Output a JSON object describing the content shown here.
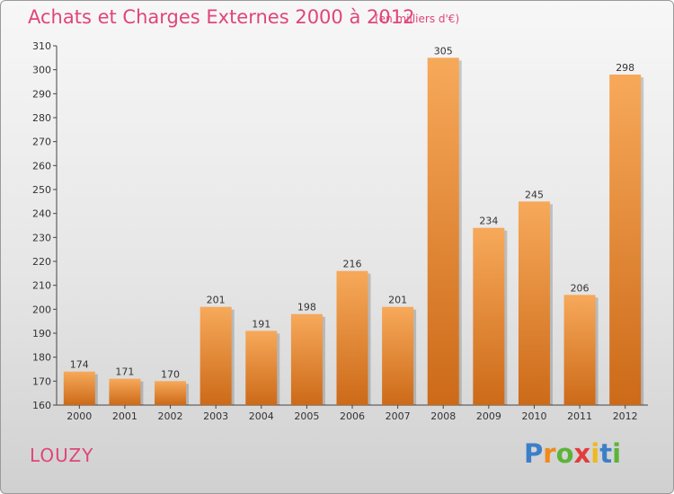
{
  "chart_data": {
    "type": "bar",
    "title": "Achats et Charges Externes 2000 à 2012",
    "subtitle": "(en milliers d'€)",
    "categories": [
      "2000",
      "2001",
      "2002",
      "2003",
      "2004",
      "2005",
      "2006",
      "2007",
      "2008",
      "2009",
      "2010",
      "2011",
      "2012"
    ],
    "values": [
      174,
      171,
      170,
      201,
      191,
      198,
      216,
      201,
      305,
      234,
      245,
      206,
      298
    ],
    "ylim": [
      160,
      310
    ],
    "yticks": [
      160,
      170,
      180,
      190,
      200,
      210,
      220,
      230,
      240,
      250,
      260,
      270,
      280,
      290,
      300,
      310
    ],
    "xlabel": "",
    "ylabel": "",
    "grid": false,
    "bar_color_light": "#f7a95a",
    "bar_color_dark": "#cc6a18"
  },
  "commune": "LOUZY",
  "brand": {
    "letters": [
      "P",
      "r",
      "o",
      "x",
      "i",
      "t",
      "i"
    ],
    "colors": [
      "#3c7fc8",
      "#f08a1c",
      "#5db33a",
      "#e23d3d",
      "#f0b91c",
      "#3c7fc8",
      "#5db33a"
    ]
  }
}
